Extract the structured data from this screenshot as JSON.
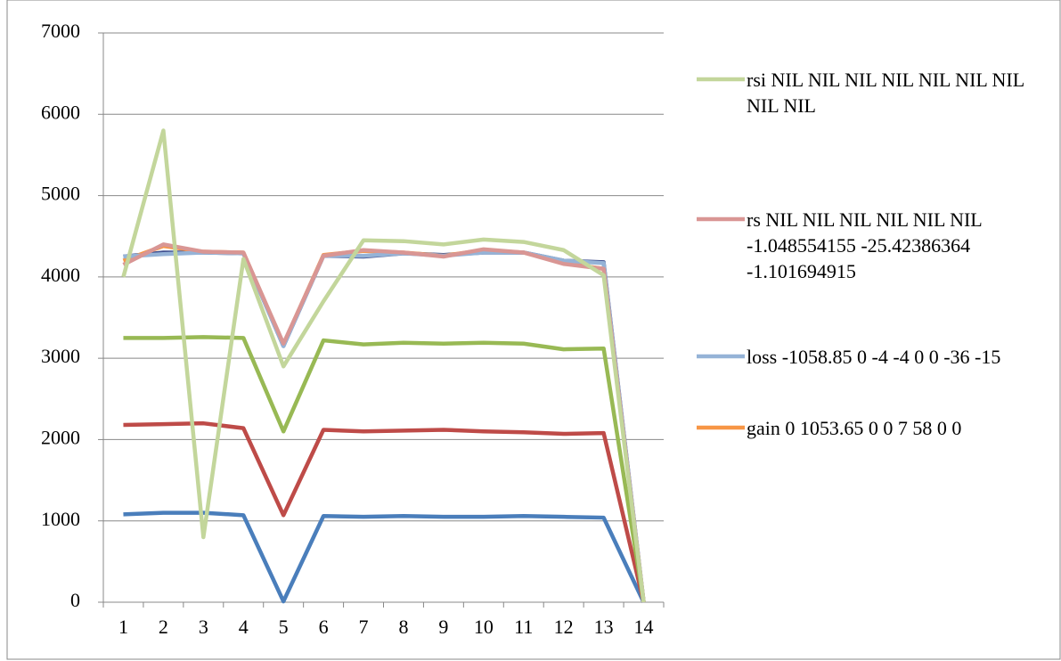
{
  "chart_data": {
    "type": "line",
    "categories": [
      "1",
      "2",
      "3",
      "4",
      "5",
      "6",
      "7",
      "8",
      "9",
      "10",
      "11",
      "12",
      "13",
      "14"
    ],
    "ylim": [
      0,
      7000
    ],
    "yticks": [
      0,
      1000,
      2000,
      3000,
      4000,
      5000,
      6000,
      7000
    ],
    "grid": true,
    "series": [
      {
        "color": "#4a7ebb",
        "values": [
          1080,
          1100,
          1100,
          1070,
          10,
          1060,
          1050,
          1060,
          1050,
          1050,
          1060,
          1050,
          1040,
          0
        ]
      },
      {
        "color": "#be4b48",
        "values": [
          2180,
          2190,
          2200,
          2140,
          1070,
          2120,
          2100,
          2110,
          2120,
          2100,
          2090,
          2070,
          2080,
          0
        ]
      },
      {
        "color": "#98b954",
        "values": [
          3250,
          3250,
          3260,
          3250,
          2100,
          3220,
          3170,
          3190,
          3180,
          3190,
          3180,
          3110,
          3120,
          0
        ]
      },
      {
        "color": "#3f4f8f",
        "values": [
          4250,
          4300,
          4300,
          4290,
          3150,
          4260,
          4250,
          4290,
          4270,
          4300,
          4300,
          4200,
          4180,
          0
        ]
      },
      {
        "name": "gain 0 1053.65 0 0 7 58 0 0",
        "color": "#f79646",
        "values": [
          4200,
          4380,
          4310,
          4300,
          3170,
          4270,
          4320,
          4300,
          4260,
          4330,
          4300,
          4170,
          4100,
          0
        ]
      },
      {
        "name": "loss -1058.85 0 -4 -4 0 0 -36 -15",
        "color": "#95b3d7",
        "values": [
          4250,
          4280,
          4300,
          4290,
          3150,
          4260,
          4260,
          4290,
          4260,
          4300,
          4300,
          4200,
          4170,
          0
        ]
      },
      {
        "name": "rs NIL NIL NIL NIL NIL NIL -1.048554155 -25.42386364 -1.101694915",
        "color": "#d99694",
        "values": [
          4150,
          4400,
          4310,
          4300,
          3180,
          4260,
          4330,
          4300,
          4250,
          4340,
          4300,
          4160,
          4100,
          0
        ]
      },
      {
        "name": "rsi NIL NIL NIL NIL NIL NIL NIL NIL NIL",
        "color": "#c3d69b",
        "values": [
          4000,
          5800,
          800,
          4220,
          2900,
          3700,
          4450,
          4440,
          4400,
          4460,
          4430,
          4330,
          4020,
          0
        ]
      }
    ]
  }
}
